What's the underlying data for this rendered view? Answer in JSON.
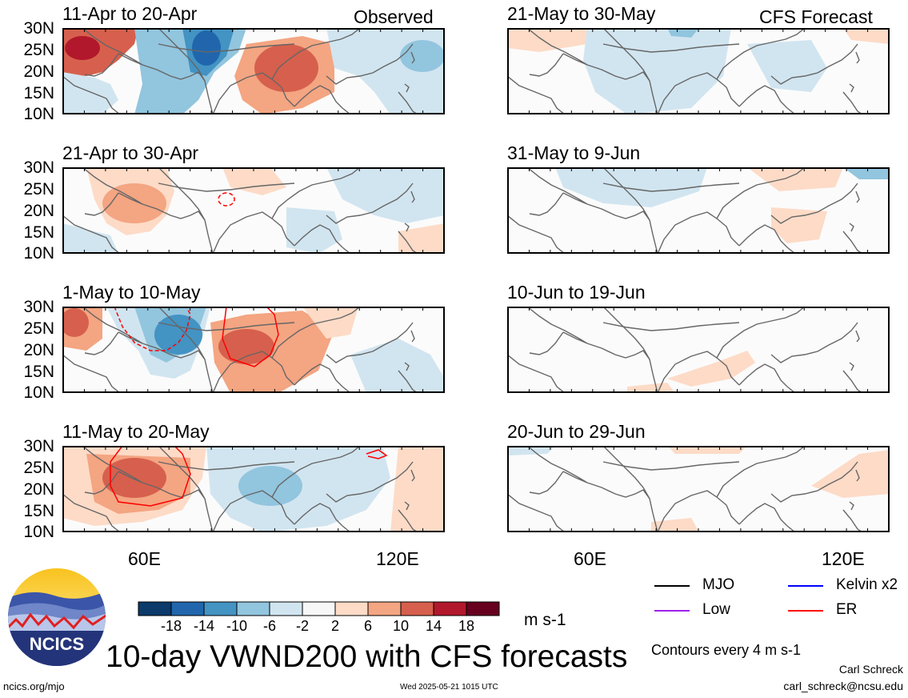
{
  "main_title": "10-day VWND200 with CFS forecasts",
  "header": {
    "left_label": "Observed",
    "right_label": "CFS Forecast"
  },
  "panels_left": [
    {
      "title": "11-Apr to 20-Apr"
    },
    {
      "title": "21-Apr to 30-Apr"
    },
    {
      "title": "1-May to 10-May"
    },
    {
      "title": "11-May to 20-May"
    }
  ],
  "panels_right": [
    {
      "title": "21-May to 30-May"
    },
    {
      "title": "31-May to 9-Jun"
    },
    {
      "title": "10-Jun to 19-Jun"
    },
    {
      "title": "20-Jun to 29-Jun"
    }
  ],
  "y_ticks": [
    "30N",
    "25N",
    "20N",
    "15N",
    "10N"
  ],
  "x_ticks": [
    "60E",
    "120E"
  ],
  "colorbar": {
    "colors": [
      "#0b3a6b",
      "#2166ac",
      "#4393c3",
      "#92c5de",
      "#d1e5f0",
      "#f7f7f7",
      "#fddbc7",
      "#f4a582",
      "#d6604d",
      "#b2182b",
      "#67001f"
    ],
    "labels": [
      "-18",
      "-14",
      "-10",
      "-6",
      "-2",
      "2",
      "6",
      "10",
      "14",
      "18"
    ],
    "units": "m s-1"
  },
  "legend": {
    "items": [
      {
        "label": "MJO",
        "color": "#000000"
      },
      {
        "label": "Kelvin x2",
        "color": "#0000ff"
      },
      {
        "label": "Low",
        "color": "#a020f0"
      },
      {
        "label": "ER",
        "color": "#ff0000"
      }
    ],
    "contours_note": "Contours every 4 m s-1"
  },
  "logo": {
    "text": "NCICS"
  },
  "footer": {
    "website": "ncics.org/mjo",
    "timestamp": "Wed 2025-05-21 1015 UTC",
    "author": "Carl Schreck",
    "email": "carl_schreck@ncsu.edu"
  }
}
